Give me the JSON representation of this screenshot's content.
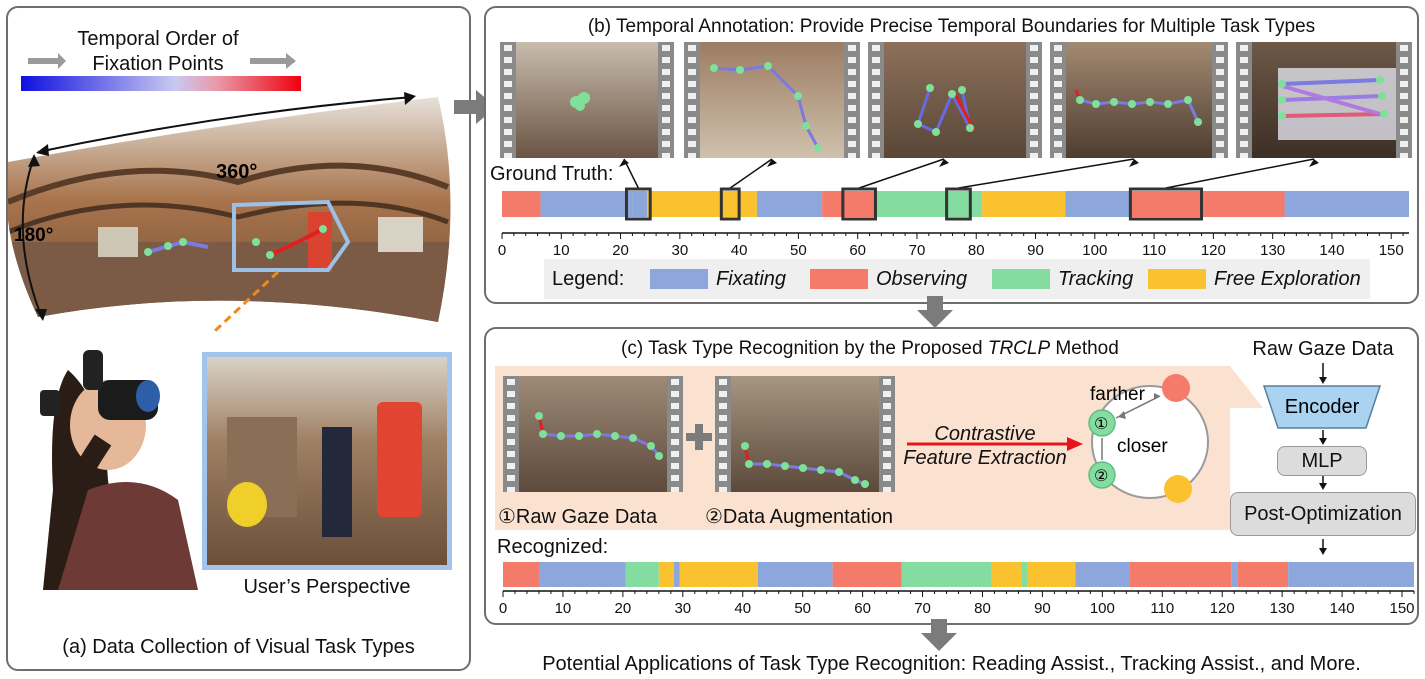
{
  "panel_a": {
    "order_title_1": "Temporal Order of",
    "order_title_2": "Fixation Points",
    "deg_360": "360°",
    "deg_180": "180°",
    "perspective_label": "User’s Perspective",
    "caption": "(a) Data Collection of Visual Task Types"
  },
  "panel_b": {
    "title": "(b) Temporal Annotation: Provide Precise Temporal Boundaries for Multiple Task Types",
    "ground_truth_label": "Ground Truth:",
    "legend_label": "Legend:"
  },
  "panel_c": {
    "title_prefix": "(c) Task Type Recognition by the Proposed ",
    "title_method": "TRCLP",
    "title_suffix": " Method",
    "raw_gaze_caption": "①Raw Gaze Data",
    "augment_caption": "②Data Augmentation",
    "contrastive_1": "Contrastive",
    "contrastive_2": "Feature Extraction",
    "farther": "farther",
    "closer": "closer",
    "circle_1": "①",
    "circle_2": "②",
    "pipeline_title": "Raw Gaze Data",
    "encoder": "Encoder",
    "mlp": "MLP",
    "post_opt": "Post-Optimization",
    "recognized_label": "Recognized:"
  },
  "footer": "Potential Applications of Task Type Recognition: Reading Assist., Tracking Assist., and More.",
  "colors": {
    "Fixating": "#8da6db",
    "Observing": "#f47a6a",
    "Tracking": "#84dca0",
    "Free Exploration": "#f9c22e"
  },
  "chart_data": [
    {
      "type": "timeline",
      "name": "Ground Truth",
      "xlim": [
        0,
        153
      ],
      "ticks": [
        0,
        10,
        20,
        30,
        40,
        50,
        60,
        70,
        80,
        90,
        100,
        110,
        120,
        130,
        140,
        150
      ],
      "segments": [
        {
          "start": 0,
          "end": 6.5,
          "label": "Observing"
        },
        {
          "start": 6.5,
          "end": 22,
          "label": "Fixating"
        },
        {
          "start": 22,
          "end": 24.5,
          "label": "Fixating"
        },
        {
          "start": 24.5,
          "end": 43,
          "label": "Free Exploration"
        },
        {
          "start": 43,
          "end": 54,
          "label": "Fixating"
        },
        {
          "start": 54,
          "end": 63,
          "label": "Observing"
        },
        {
          "start": 63,
          "end": 81,
          "label": "Tracking"
        },
        {
          "start": 81,
          "end": 95,
          "label": "Free Exploration"
        },
        {
          "start": 95,
          "end": 106,
          "label": "Fixating"
        },
        {
          "start": 106,
          "end": 132,
          "label": "Observing"
        },
        {
          "start": 132,
          "end": 153,
          "label": "Fixating"
        }
      ],
      "annotation_boxes": [
        [
          21,
          25
        ],
        [
          37,
          40
        ],
        [
          57.5,
          63
        ],
        [
          75,
          79
        ],
        [
          106,
          118
        ]
      ]
    },
    {
      "type": "timeline",
      "name": "Recognized",
      "xlim": [
        0,
        152
      ],
      "ticks": [
        0,
        10,
        20,
        30,
        40,
        50,
        60,
        70,
        80,
        90,
        100,
        110,
        120,
        130,
        140,
        150
      ],
      "segments": [
        {
          "start": 0,
          "end": 6,
          "label": "Observing"
        },
        {
          "start": 6,
          "end": 20.5,
          "label": "Fixating"
        },
        {
          "start": 20.5,
          "end": 26,
          "label": "Tracking"
        },
        {
          "start": 26,
          "end": 28.5,
          "label": "Free Exploration"
        },
        {
          "start": 28.5,
          "end": 29.5,
          "label": "Fixating"
        },
        {
          "start": 29.5,
          "end": 42.5,
          "label": "Free Exploration"
        },
        {
          "start": 42.5,
          "end": 55,
          "label": "Fixating"
        },
        {
          "start": 55,
          "end": 66.5,
          "label": "Observing"
        },
        {
          "start": 66.5,
          "end": 81.5,
          "label": "Tracking"
        },
        {
          "start": 81.5,
          "end": 86.5,
          "label": "Free Exploration"
        },
        {
          "start": 86.5,
          "end": 87.5,
          "label": "Tracking"
        },
        {
          "start": 87.5,
          "end": 95.5,
          "label": "Free Exploration"
        },
        {
          "start": 95.5,
          "end": 104.5,
          "label": "Fixating"
        },
        {
          "start": 104.5,
          "end": 121.5,
          "label": "Observing"
        },
        {
          "start": 121.5,
          "end": 122.5,
          "label": "Fixating"
        },
        {
          "start": 122.5,
          "end": 131,
          "label": "Observing"
        },
        {
          "start": 131,
          "end": 152,
          "label": "Fixating"
        }
      ]
    }
  ]
}
